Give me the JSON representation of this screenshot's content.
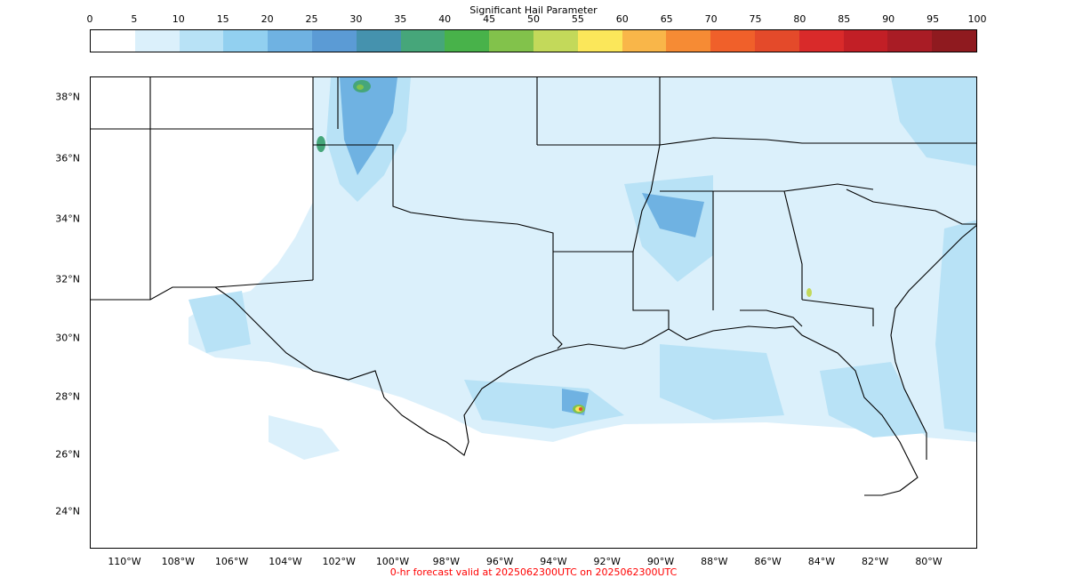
{
  "colorbar": {
    "title": "Significant Hail Parameter",
    "ticks": [
      "0",
      "5",
      "10",
      "15",
      "20",
      "25",
      "30",
      "35",
      "40",
      "45",
      "50",
      "55",
      "60",
      "65",
      "70",
      "75",
      "80",
      "85",
      "90",
      "95",
      "100"
    ],
    "colors": [
      "#ffffff",
      "#dbf0fb",
      "#b8e2f6",
      "#92d0f0",
      "#6fb2e2",
      "#5b9bd5",
      "#4592ae",
      "#46a67a",
      "#48b24a",
      "#82c24b",
      "#c3d95a",
      "#fbe75a",
      "#f9b649",
      "#f68b34",
      "#f0602a",
      "#e44a2a",
      "#d92a2a",
      "#c21f26",
      "#a91c25",
      "#8f1a1f"
    ]
  },
  "map": {
    "lat_labels": [
      "38°N",
      "36°N",
      "34°N",
      "32°N",
      "30°N",
      "28°N",
      "26°N",
      "24°N"
    ],
    "lon_labels": [
      "110°W",
      "108°W",
      "106°W",
      "104°W",
      "102°W",
      "100°W",
      "98°W",
      "96°W",
      "94°W",
      "92°W",
      "90°W",
      "88°W",
      "86°W",
      "84°W",
      "82°W",
      "80°W"
    ]
  },
  "footer": {
    "text": "0-hr forecast valid at 2025062300UTC on 2025062300UTC",
    "color": "#ff0000"
  }
}
